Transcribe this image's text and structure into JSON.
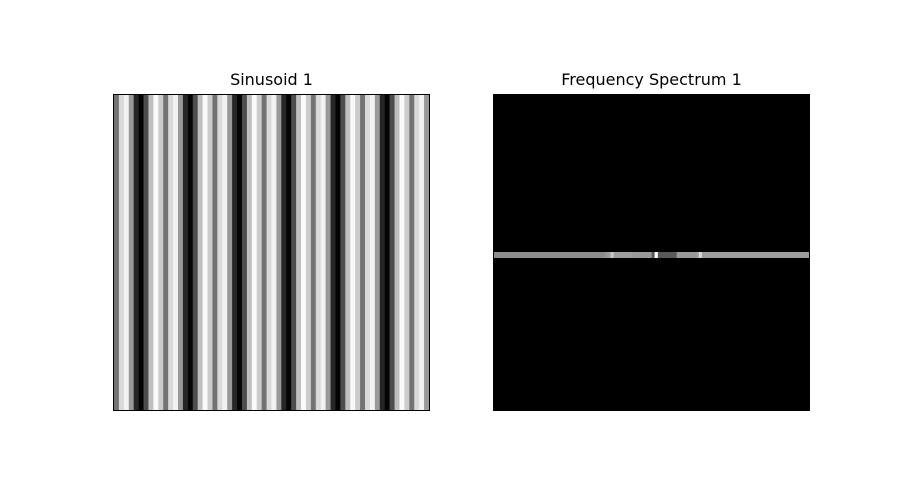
{
  "chart_data": [
    {
      "type": "heatmap",
      "title": "Sinusoid 1",
      "colormap": "gray",
      "axes_visible": false,
      "columns": 64,
      "pattern_period_columns": 4.5,
      "gray_levels": [
        0.45,
        0.85,
        0.95,
        0.6,
        0.15,
        0.02,
        0.3,
        0.75,
        0.98,
        0.8
      ]
    },
    {
      "type": "heatmap",
      "title": "Frequency Spectrum 1",
      "colormap": "gray",
      "axes_visible": false,
      "background_level": 0.0,
      "center_row_intensity": [
        {
          "x": 0.0,
          "level": 0.55
        },
        {
          "x": 0.35,
          "level": 0.58
        },
        {
          "x": 0.36,
          "level": 0.62
        },
        {
          "x": 0.37,
          "level": 0.78
        },
        {
          "x": 0.38,
          "level": 0.62
        },
        {
          "x": 0.44,
          "level": 0.6
        },
        {
          "x": 0.5,
          "level": 0.35
        },
        {
          "x": 0.51,
          "level": 1.0
        },
        {
          "x": 0.52,
          "level": 0.35
        },
        {
          "x": 0.58,
          "level": 0.6
        },
        {
          "x": 0.64,
          "level": 0.62
        },
        {
          "x": 0.65,
          "level": 0.85
        },
        {
          "x": 0.66,
          "level": 0.62
        },
        {
          "x": 1.0,
          "level": 0.55
        }
      ]
    }
  ]
}
